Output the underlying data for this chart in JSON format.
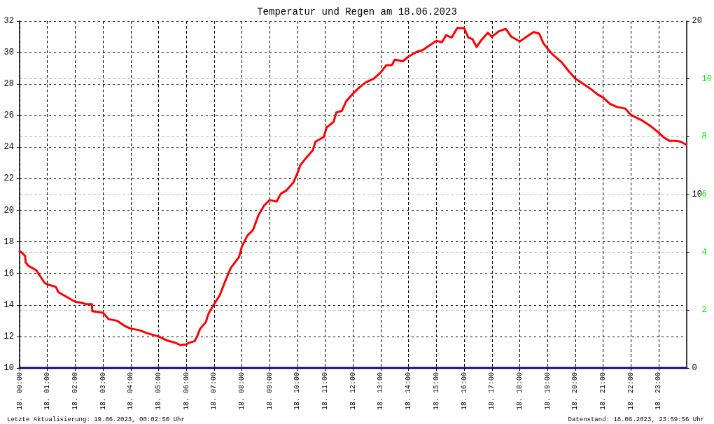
{
  "chart_data": {
    "type": "line",
    "title": "Temperatur und Regen am 18.06.2023",
    "annotations": [
      "Letzte Aktualisierung: 19.06.2023, 00:02:50 Uhr",
      "Datenstand: 18.06.2023, 23:59:56 Uhr"
    ],
    "xlim": [
      "2023-06-18T00:00",
      "2023-06-19T00:00"
    ],
    "xticks": [
      {
        "value": "2023-06-18T00:00",
        "label": "18. 00:00"
      },
      {
        "value": "2023-06-18T01:00",
        "label": "18. 01:00"
      },
      {
        "value": "2023-06-18T02:00",
        "label": "18. 02:00"
      },
      {
        "value": "2023-06-18T03:00",
        "label": "18. 03:00"
      },
      {
        "value": "2023-06-18T04:00",
        "label": "18. 04:00"
      },
      {
        "value": "2023-06-18T05:00",
        "label": "18. 05:00"
      },
      {
        "value": "2023-06-18T06:00",
        "label": "18. 06:00"
      },
      {
        "value": "2023-06-18T07:00",
        "label": "18. 07:00"
      },
      {
        "value": "2023-06-18T08:00",
        "label": "18. 08:00"
      },
      {
        "value": "2023-06-18T09:00",
        "label": "18. 09:00"
      },
      {
        "value": "2023-06-18T10:00",
        "label": "18. 10:00"
      },
      {
        "value": "2023-06-18T11:00",
        "label": "18. 11:00"
      },
      {
        "value": "2023-06-18T12:00",
        "label": "18. 12:00"
      },
      {
        "value": "2023-06-18T13:00",
        "label": "18. 13:00"
      },
      {
        "value": "2023-06-18T14:00",
        "label": "18. 14:00"
      },
      {
        "value": "2023-06-18T15:00",
        "label": "18. 15:00"
      },
      {
        "value": "2023-06-18T16:00",
        "label": "18. 16:00"
      },
      {
        "value": "2023-06-18T17:00",
        "label": "18. 17:00"
      },
      {
        "value": "2023-06-18T18:00",
        "label": "18. 18:00"
      },
      {
        "value": "2023-06-18T19:00",
        "label": "18. 19:00"
      },
      {
        "value": "2023-06-18T20:00",
        "label": "18. 20:00"
      },
      {
        "value": "2023-06-18T21:00",
        "label": "18. 21:00"
      },
      {
        "value": "2023-06-18T22:00",
        "label": "18. 22:00"
      },
      {
        "value": "2023-06-18T23:00",
        "label": "18. 23:00"
      }
    ],
    "ylim": [
      10,
      32
    ],
    "yticks": [
      10,
      12,
      14,
      16,
      18,
      20,
      22,
      24,
      26,
      28,
      30,
      32
    ],
    "y2lim": [
      0,
      20
    ],
    "y2ticks": [
      0,
      10,
      20
    ],
    "y3lim": [
      0,
      12
    ],
    "y3ticks": [
      2,
      4,
      6,
      8,
      10
    ],
    "grid": true,
    "marker": "none",
    "line_style": "solid",
    "series": [
      {
        "color": "#ff0000",
        "x": [
          "2023-06-18T00:00",
          "2023-06-18T00:06",
          "2023-06-18T00:12",
          "2023-06-18T00:13",
          "2023-06-18T00:18",
          "2023-06-18T00:27",
          "2023-06-18T00:36",
          "2023-06-18T00:45",
          "2023-06-18T00:54",
          "2023-06-18T01:00",
          "2023-06-18T01:18",
          "2023-06-18T01:24",
          "2023-06-18T01:42",
          "2023-06-18T02:00",
          "2023-06-18T02:12",
          "2023-06-18T02:24",
          "2023-06-18T02:36",
          "2023-06-18T02:37",
          "2023-06-18T03:00",
          "2023-06-18T03:12",
          "2023-06-18T03:30",
          "2023-06-18T03:48",
          "2023-06-18T04:00",
          "2023-06-18T04:18",
          "2023-06-18T04:36",
          "2023-06-18T05:00",
          "2023-06-18T05:18",
          "2023-06-18T05:36",
          "2023-06-18T05:48",
          "2023-06-18T06:00",
          "2023-06-18T06:06",
          "2023-06-18T06:18",
          "2023-06-18T06:24",
          "2023-06-18T06:30",
          "2023-06-18T06:42",
          "2023-06-18T06:48",
          "2023-06-18T07:00",
          "2023-06-18T07:12",
          "2023-06-18T07:24",
          "2023-06-18T07:36",
          "2023-06-18T07:48",
          "2023-06-18T07:54",
          "2023-06-18T08:00",
          "2023-06-18T08:12",
          "2023-06-18T08:24",
          "2023-06-18T08:36",
          "2023-06-18T08:48",
          "2023-06-18T09:00",
          "2023-06-18T09:15",
          "2023-06-18T09:24",
          "2023-06-18T09:36",
          "2023-06-18T09:51",
          "2023-06-18T10:00",
          "2023-06-18T10:06",
          "2023-06-18T10:21",
          "2023-06-18T10:33",
          "2023-06-18T10:39",
          "2023-06-18T10:57",
          "2023-06-18T11:03",
          "2023-06-18T11:18",
          "2023-06-18T11:24",
          "2023-06-18T11:36",
          "2023-06-18T11:45",
          "2023-06-18T12:00",
          "2023-06-18T12:12",
          "2023-06-18T12:27",
          "2023-06-18T12:45",
          "2023-06-18T13:00",
          "2023-06-18T13:12",
          "2023-06-18T13:24",
          "2023-06-18T13:30",
          "2023-06-18T13:48",
          "2023-06-18T14:00",
          "2023-06-18T14:18",
          "2023-06-18T14:30",
          "2023-06-18T14:45",
          "2023-06-18T15:00",
          "2023-06-18T15:12",
          "2023-06-18T15:21",
          "2023-06-18T15:33",
          "2023-06-18T15:45",
          "2023-06-18T16:00",
          "2023-06-18T16:09",
          "2023-06-18T16:18",
          "2023-06-18T16:27",
          "2023-06-18T16:36",
          "2023-06-18T16:51",
          "2023-06-18T17:00",
          "2023-06-18T17:15",
          "2023-06-18T17:30",
          "2023-06-18T17:42",
          "2023-06-18T18:00",
          "2023-06-18T18:15",
          "2023-06-18T18:30",
          "2023-06-18T18:42",
          "2023-06-18T18:51",
          "2023-06-18T19:00",
          "2023-06-18T19:12",
          "2023-06-18T19:30",
          "2023-06-18T19:45",
          "2023-06-18T20:00",
          "2023-06-18T20:18",
          "2023-06-18T20:33",
          "2023-06-18T20:48",
          "2023-06-18T21:00",
          "2023-06-18T21:15",
          "2023-06-18T21:30",
          "2023-06-18T21:48",
          "2023-06-18T22:00",
          "2023-06-18T22:24",
          "2023-06-18T22:42",
          "2023-06-18T22:57",
          "2023-06-18T23:12",
          "2023-06-18T23:24",
          "2023-06-18T23:36",
          "2023-06-18T23:48",
          "2023-06-19T00:00"
        ],
        "values": [
          17.4,
          17.3,
          17.1,
          16.7,
          16.5,
          16.35,
          16.2,
          15.8,
          15.4,
          15.3,
          15.15,
          14.8,
          14.5,
          14.2,
          14.15,
          14.05,
          14.05,
          13.6,
          13.5,
          13.1,
          13.0,
          12.65,
          12.5,
          12.4,
          12.2,
          12.0,
          11.75,
          11.6,
          11.45,
          11.5,
          11.6,
          11.7,
          12.05,
          12.5,
          12.9,
          13.45,
          14.05,
          14.6,
          15.5,
          16.35,
          16.8,
          17.05,
          17.7,
          18.4,
          18.75,
          19.7,
          20.3,
          20.65,
          20.55,
          21.05,
          21.25,
          21.75,
          22.35,
          22.85,
          23.4,
          23.8,
          24.35,
          24.65,
          25.25,
          25.6,
          26.2,
          26.3,
          26.9,
          27.4,
          27.75,
          28.1,
          28.35,
          28.75,
          29.2,
          29.2,
          29.55,
          29.45,
          29.75,
          30.05,
          30.15,
          30.45,
          30.75,
          30.65,
          31.1,
          30.95,
          31.55,
          31.55,
          30.95,
          30.85,
          30.35,
          30.75,
          31.25,
          31.0,
          31.35,
          31.5,
          31.0,
          30.7,
          31.0,
          31.3,
          31.2,
          30.6,
          30.25,
          29.85,
          29.4,
          28.85,
          28.35,
          28.0,
          27.7,
          27.35,
          27.15,
          26.75,
          26.55,
          26.45,
          26.05,
          25.7,
          25.35,
          25.0,
          24.6,
          24.4,
          24.4,
          24.35,
          24.15
        ]
      },
      {
        "color": "#000080",
        "axis": "y2",
        "x": [
          "2023-06-18T00:00",
          "2023-06-19T00:00"
        ],
        "values": [
          0,
          0
        ]
      }
    ]
  }
}
